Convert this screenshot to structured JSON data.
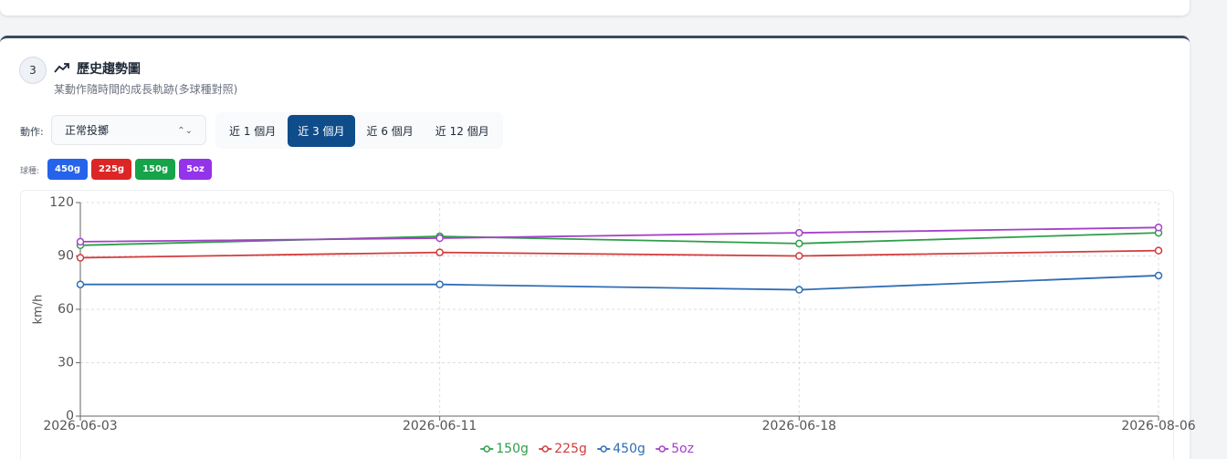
{
  "section": {
    "number": "3",
    "title": "歷史趨勢圖",
    "subtitle": "某動作隨時間的成長軌跡(多球種對照)"
  },
  "controls": {
    "action_label": "動作:",
    "action_value": "正常投擲",
    "ranges": [
      "近 1 個月",
      "近 3 個月",
      "近 6 個月",
      "近 12 個月"
    ],
    "active_range": 1,
    "ball_label": "球種:",
    "balls": [
      {
        "name": "450g",
        "color": "#2563eb"
      },
      {
        "name": "225g",
        "color": "#dc2626"
      },
      {
        "name": "150g",
        "color": "#16a34a"
      },
      {
        "name": "5oz",
        "color": "#9333ea"
      }
    ]
  },
  "chart_data": {
    "type": "line",
    "y_label": "km/h",
    "categories": [
      "2026-06-03",
      "2026-06-11",
      "2026-06-18",
      "2026-08-06"
    ],
    "series": [
      {
        "name": "150g",
        "color": "#2e9e4a",
        "values": [
          96,
          101,
          97,
          103
        ]
      },
      {
        "name": "225g",
        "color": "#d23c3c",
        "values": [
          89,
          92,
          90,
          93
        ]
      },
      {
        "name": "450g",
        "color": "#2f6db5",
        "values": [
          74,
          74,
          71,
          79
        ]
      },
      {
        "name": "5oz",
        "color": "#a640c8",
        "values": [
          98,
          100,
          103,
          106
        ]
      }
    ],
    "ylim": [
      0,
      120
    ],
    "yticks": [
      0,
      30,
      60,
      90,
      120
    ],
    "grid": true
  }
}
